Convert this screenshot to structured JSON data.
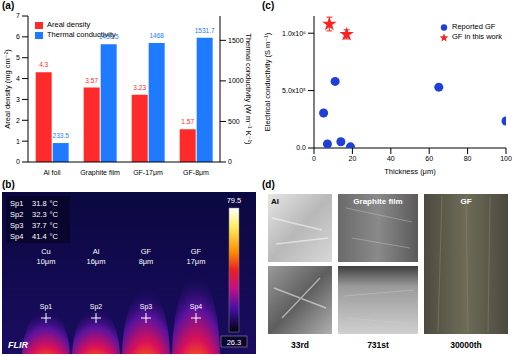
{
  "chart_data": [
    {
      "type": "bar",
      "title": "(a)",
      "categories": [
        "Al foil",
        "Graphite film",
        "GF-17μm",
        "GF-8μm"
      ],
      "series": [
        {
          "name": "Areal density",
          "color": "#ff2a2a",
          "values": [
            4.3,
            3.57,
            3.23,
            1.57
          ]
        },
        {
          "name": "Thermal conductivity",
          "color": "#1e7bff",
          "axis": "y2",
          "values": [
            233.5,
            1450.5,
            1468,
            1531.7
          ]
        }
      ],
      "y_label": "Areal density (mg cm⁻²)",
      "y2_label": "Thermal conductivity (W m⁻¹ K⁻¹)",
      "ylim": [
        0,
        7
      ],
      "yticks": [
        0,
        1,
        2,
        3,
        4,
        5,
        6,
        7
      ],
      "y2lim": [
        0,
        1800
      ],
      "y2ticks": [
        0,
        500,
        1000,
        1500
      ],
      "data_labels": true,
      "legend": "top-left"
    },
    {
      "type": "scatter",
      "title": "(c)",
      "x_label": "Thickness (μm)",
      "y_label": "Electrical conductivity (S m⁻¹)",
      "xlim": [
        0,
        100
      ],
      "xticks": [
        0,
        20,
        40,
        60,
        80,
        100
      ],
      "ylim": [
        0,
        1150000
      ],
      "yticks": [
        {
          "value": 0,
          "label": "0.0"
        },
        {
          "value": 500000,
          "label": "5.0x10⁵"
        },
        {
          "value": 1000000,
          "label": "1.0x10⁶"
        }
      ],
      "legend": "top-right",
      "series": [
        {
          "name": "Reported GF",
          "color": "#1f3fd6",
          "marker": "circle",
          "x": [
            5,
            7,
            11,
            14,
            19,
            65,
            100
          ],
          "values": [
            305000,
            35000,
            580000,
            55000,
            10000,
            530000,
            235000
          ]
        },
        {
          "name": "GF in this work",
          "color": "#ff2020",
          "marker": "star",
          "x": [
            8,
            17
          ],
          "values": [
            1080000,
            990000
          ],
          "errors": [
            60000,
            40000
          ]
        }
      ]
    }
  ],
  "thermal_image": {
    "title": "(b)",
    "unit": "°C",
    "spots": [
      {
        "name": "Sp1",
        "value": 31.8
      },
      {
        "name": "Sp2",
        "value": 32.3
      },
      {
        "name": "Sp3",
        "value": 37.7
      },
      {
        "name": "Sp4",
        "value": 41.4
      }
    ],
    "samples": [
      {
        "name": "Cu",
        "thickness": "10μm"
      },
      {
        "name": "Al",
        "thickness": "16μm"
      },
      {
        "name": "GF",
        "thickness": "8μm"
      },
      {
        "name": "GF",
        "thickness": "17μm"
      }
    ],
    "scale_max": 79.5,
    "scale_min": 26.3,
    "brand": "FLIR"
  },
  "photos": {
    "title": "(d)",
    "samples": [
      "Al",
      "Graphite film",
      "GF"
    ],
    "cycles": [
      "33rd",
      "731st",
      "30000th"
    ]
  }
}
